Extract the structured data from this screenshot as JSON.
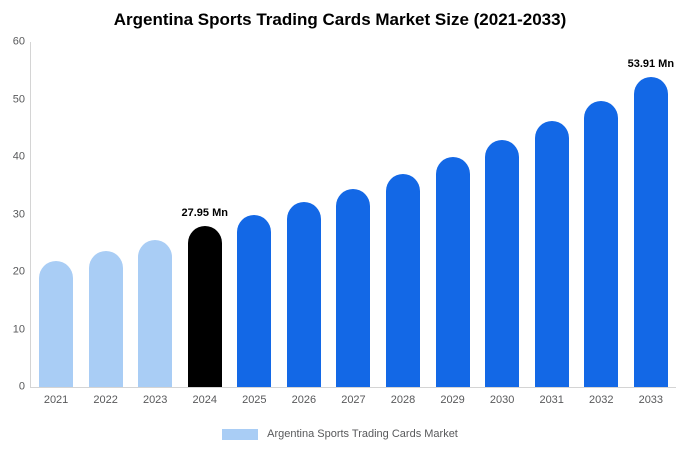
{
  "chart_data": {
    "type": "bar",
    "title": "Argentina Sports Trading Cards Market Size (2021-2033)",
    "categories": [
      "2021",
      "2022",
      "2023",
      "2024",
      "2025",
      "2026",
      "2027",
      "2028",
      "2029",
      "2030",
      "2031",
      "2032",
      "2033"
    ],
    "values": [
      22.0,
      23.7,
      25.5,
      27.95,
      29.9,
      32.1,
      34.5,
      37.0,
      40.0,
      43.0,
      46.2,
      49.7,
      53.91
    ],
    "bar_colors": [
      "#A9CDF5",
      "#A9CDF5",
      "#A9CDF5",
      "#000000",
      "#1368E6",
      "#1368E6",
      "#1368E6",
      "#1368E6",
      "#1368E6",
      "#1368E6",
      "#1368E6",
      "#1368E6",
      "#1368E6"
    ],
    "annotations": [
      {
        "category": "2024",
        "text": "27.95 Mn"
      },
      {
        "category": "2033",
        "text": "53.91 Mn"
      }
    ],
    "xlabel": "",
    "ylabel": "",
    "ylim": [
      0,
      60
    ],
    "yticks": [
      0,
      10,
      20,
      30,
      40,
      50,
      60
    ],
    "grid": false,
    "legend": {
      "position": "bottom",
      "label": "Argentina Sports Trading Cards Market",
      "swatch_color": "#A9CDF5"
    },
    "colors": {
      "historical_bar": "#A9CDF5",
      "current_year_bar": "#000000",
      "forecast_bar": "#1368E6",
      "axis_line": "#d4d4d4",
      "tick_label": "#58595b",
      "title_text": "#000000"
    }
  }
}
